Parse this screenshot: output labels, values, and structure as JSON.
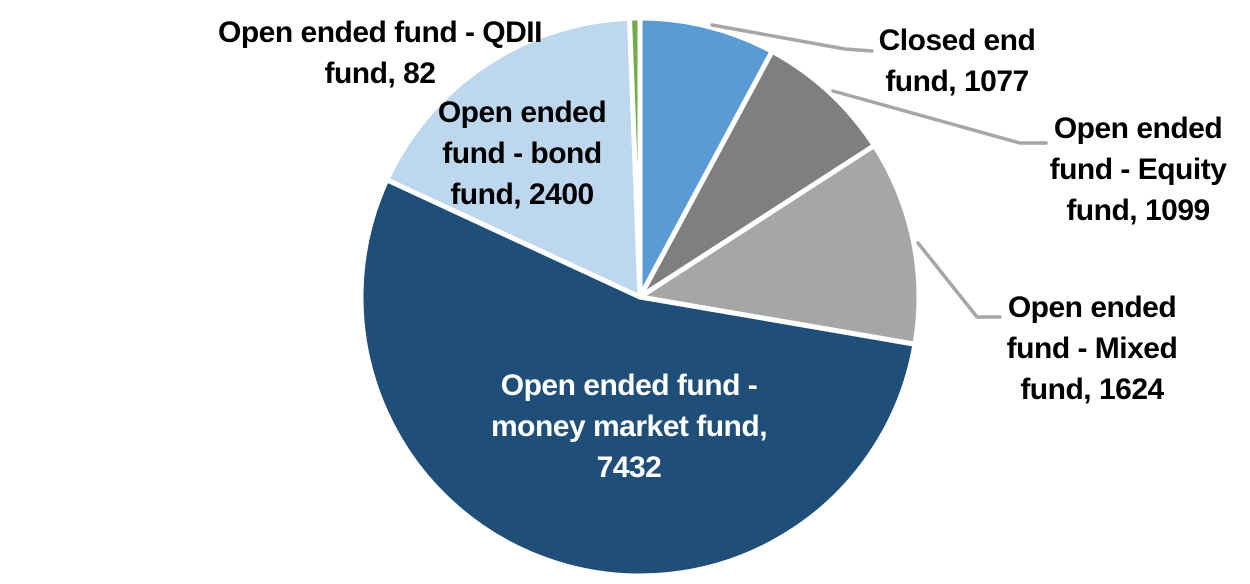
{
  "chart_data": {
    "type": "pie",
    "title": "",
    "legend_position": "none",
    "background_color": "#FFFFFF",
    "label_text_color": "#000000",
    "inside_label_text_color": "#FFFFFF",
    "callout_line_color": "#A6A6A6",
    "slice_border_color": "#FFFFFF",
    "categories": [
      "Closed end fund",
      "Open ended fund - Equity fund",
      "Open ended fund - Mixed fund",
      "Open ended fund - money market fund",
      "Open ended fund - bond fund",
      "Open ended fund - QDII fund"
    ],
    "values": [
      1077,
      1099,
      1624,
      7432,
      2400,
      82
    ],
    "segments": [
      {
        "label": "Closed end fund",
        "value": 1077,
        "color": "#5B9BD5",
        "label_lines": [
          "Closed end",
          "fund, 1077"
        ],
        "label_placement": "outside-callout"
      },
      {
        "label": "Open ended fund - Equity fund",
        "value": 1099,
        "color": "#7F7F7F",
        "label_lines": [
          "Open ended",
          "fund - Equity",
          "fund, 1099"
        ],
        "label_placement": "outside-callout"
      },
      {
        "label": "Open ended fund - Mixed fund",
        "value": 1624,
        "color": "#A6A6A6",
        "label_lines": [
          "Open ended",
          "fund - Mixed",
          "fund, 1624"
        ],
        "label_placement": "outside-callout"
      },
      {
        "label": "Open ended fund - money market fund",
        "value": 7432,
        "color": "#1F4E79",
        "label_lines": [
          "Open ended fund -",
          "money market fund,",
          "7432"
        ],
        "label_placement": "inside"
      },
      {
        "label": "Open ended fund - bond fund",
        "value": 2400,
        "color": "#BDD7EE",
        "label_lines": [
          "Open ended",
          "fund - bond",
          "fund, 2400"
        ],
        "label_placement": "outside"
      },
      {
        "label": "Open ended fund - QDII fund",
        "value": 82,
        "color": "#70AD47",
        "label_lines": [
          "Open ended fund - QDII",
          "fund, 82"
        ],
        "label_placement": "outside"
      }
    ]
  }
}
